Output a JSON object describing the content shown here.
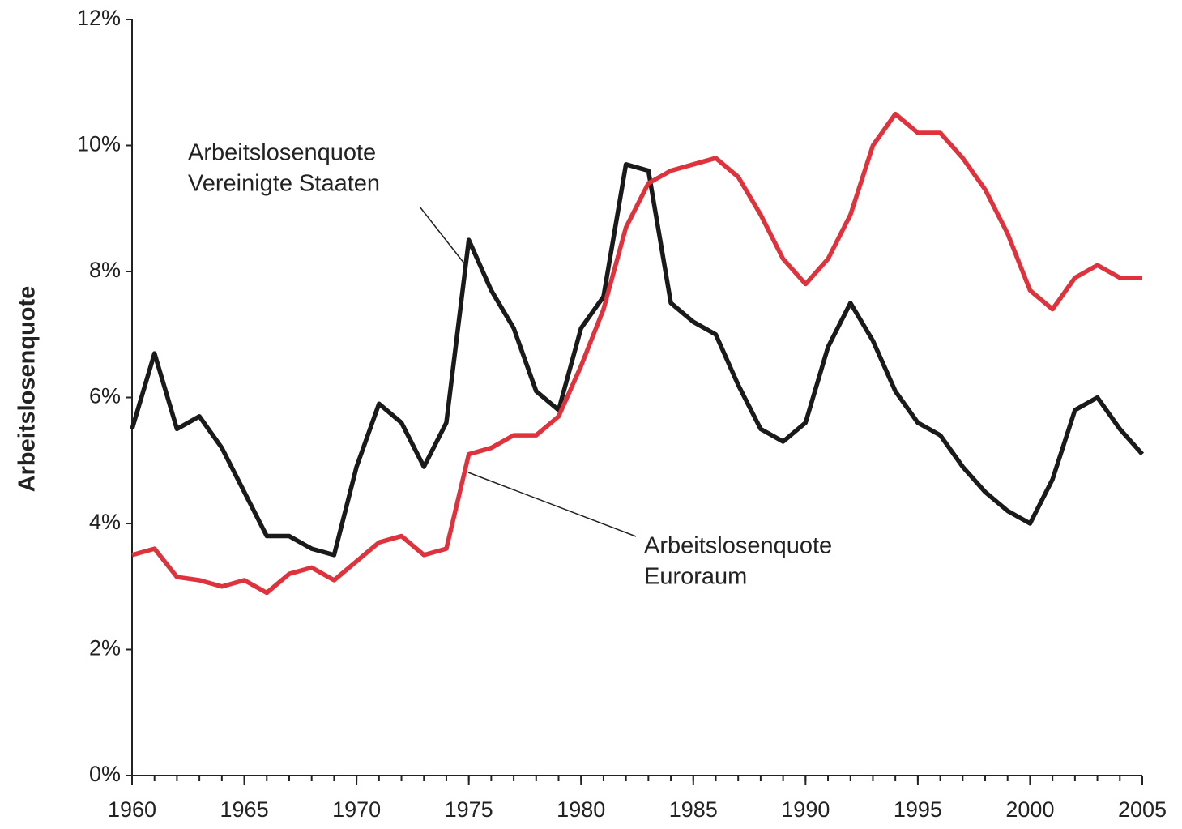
{
  "chart_data": {
    "type": "line",
    "y_label": "Arbeitslosenquote",
    "x": [
      1960,
      1961,
      1962,
      1963,
      1964,
      1965,
      1966,
      1967,
      1968,
      1969,
      1970,
      1971,
      1972,
      1973,
      1974,
      1975,
      1976,
      1977,
      1978,
      1979,
      1980,
      1981,
      1982,
      1983,
      1984,
      1985,
      1986,
      1987,
      1988,
      1989,
      1990,
      1991,
      1992,
      1993,
      1994,
      1995,
      1996,
      1997,
      1998,
      1999,
      2000,
      2001,
      2002,
      2003,
      2004,
      2005
    ],
    "series": [
      {
        "label": [
          "Arbeitslosenquote",
          "Vereinigte Staaten"
        ],
        "color": "#1a1a1a",
        "values": [
          5.5,
          6.7,
          5.5,
          5.7,
          5.2,
          4.5,
          3.8,
          3.8,
          3.6,
          3.5,
          4.9,
          5.9,
          5.6,
          4.9,
          5.6,
          8.5,
          7.7,
          7.1,
          6.1,
          5.8,
          7.1,
          7.6,
          9.7,
          9.6,
          7.5,
          7.2,
          7.0,
          6.2,
          5.5,
          5.3,
          5.6,
          6.8,
          7.5,
          6.9,
          6.1,
          5.6,
          5.4,
          4.9,
          4.5,
          4.2,
          4.0,
          4.7,
          5.8,
          6.0,
          5.5,
          5.1
        ]
      },
      {
        "label": [
          "Arbeitslosenquote",
          "Euroraum"
        ],
        "color": "#e0323c",
        "values": [
          3.5,
          3.6,
          3.15,
          3.1,
          3.0,
          3.1,
          2.9,
          3.2,
          3.3,
          3.1,
          3.4,
          3.7,
          3.8,
          3.5,
          3.6,
          5.1,
          5.2,
          5.4,
          5.4,
          5.7,
          6.5,
          7.4,
          8.7,
          9.4,
          9.6,
          9.7,
          9.8,
          9.5,
          8.9,
          8.2,
          7.8,
          8.2,
          8.9,
          10.0,
          10.5,
          10.2,
          10.2,
          9.8,
          9.3,
          8.6,
          7.7,
          7.4,
          7.9,
          8.1,
          7.9,
          7.9
        ]
      }
    ],
    "xlim": [
      1960,
      2005
    ],
    "xticks": [
      1960,
      1965,
      1970,
      1975,
      1980,
      1985,
      1990,
      1995,
      2000,
      2005
    ],
    "ylim": [
      0,
      12
    ],
    "yticks": [
      {
        "value": 0,
        "label": "0%"
      },
      {
        "value": 2,
        "label": "2%"
      },
      {
        "value": 4,
        "label": "4%"
      },
      {
        "value": 6,
        "label": "6%"
      },
      {
        "value": 8,
        "label": "8%"
      },
      {
        "value": 10,
        "label": "10%"
      },
      {
        "value": 12,
        "label": "12%"
      }
    ],
    "grid": false
  }
}
